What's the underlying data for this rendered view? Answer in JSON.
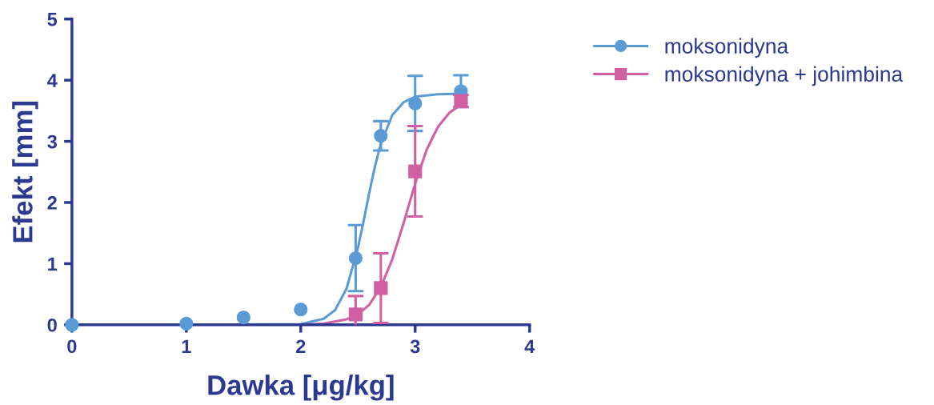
{
  "chart_data": {
    "type": "scatter",
    "xlabel": "Dawka [μg/kg]",
    "ylabel": "Efekt [mm]",
    "xlim": [
      0,
      4
    ],
    "xticks": [
      0,
      1,
      2,
      3,
      4
    ],
    "ylim": [
      0,
      5
    ],
    "yticks": [
      0,
      1,
      2,
      3,
      4,
      5
    ],
    "grid": false,
    "legend": "right",
    "series": [
      {
        "type": "line",
        "color": "#5b9bd5",
        "x": [
          0,
          1,
          2.0,
          2.2,
          2.3,
          2.4,
          2.5,
          2.55,
          2.6,
          2.65,
          2.7,
          2.8,
          2.9,
          3.0,
          3.2,
          3.4
        ],
        "values": [
          0,
          0,
          0.01,
          0.1,
          0.24,
          0.59,
          1.26,
          1.7,
          2.17,
          2.6,
          2.96,
          3.43,
          3.64,
          3.73,
          3.77,
          3.78
        ]
      },
      {
        "type": "line",
        "color": "#d160a3",
        "x": [
          2.0,
          2.2,
          2.4,
          2.5,
          2.6,
          2.7,
          2.8,
          2.9,
          3.0,
          3.1,
          3.2,
          3.3,
          3.4
        ],
        "values": [
          0.0,
          0.02,
          0.09,
          0.17,
          0.33,
          0.62,
          1.07,
          1.67,
          2.31,
          2.86,
          3.24,
          3.47,
          3.6
        ]
      },
      {
        "name": "moksonidyna",
        "color": "#5b9bd5",
        "marker": "circle",
        "x": [
          0,
          1,
          1.5,
          2,
          2.48,
          2.7,
          3.0,
          3.4
        ],
        "values": [
          0,
          0.02,
          0.12,
          0.25,
          1.09,
          3.09,
          3.62,
          3.82
        ],
        "errors": [
          null,
          null,
          null,
          null,
          0.54,
          0.24,
          0.45,
          0.26
        ]
      },
      {
        "name": "moksonidyna + johimbina",
        "color": "#d160a3",
        "marker": "square",
        "x": [
          2.48,
          2.7,
          3.0,
          3.4
        ],
        "values": [
          0.17,
          0.6,
          2.51,
          3.66
        ],
        "errors": [
          0.3,
          0.57,
          0.74,
          0.1
        ]
      }
    ]
  }
}
